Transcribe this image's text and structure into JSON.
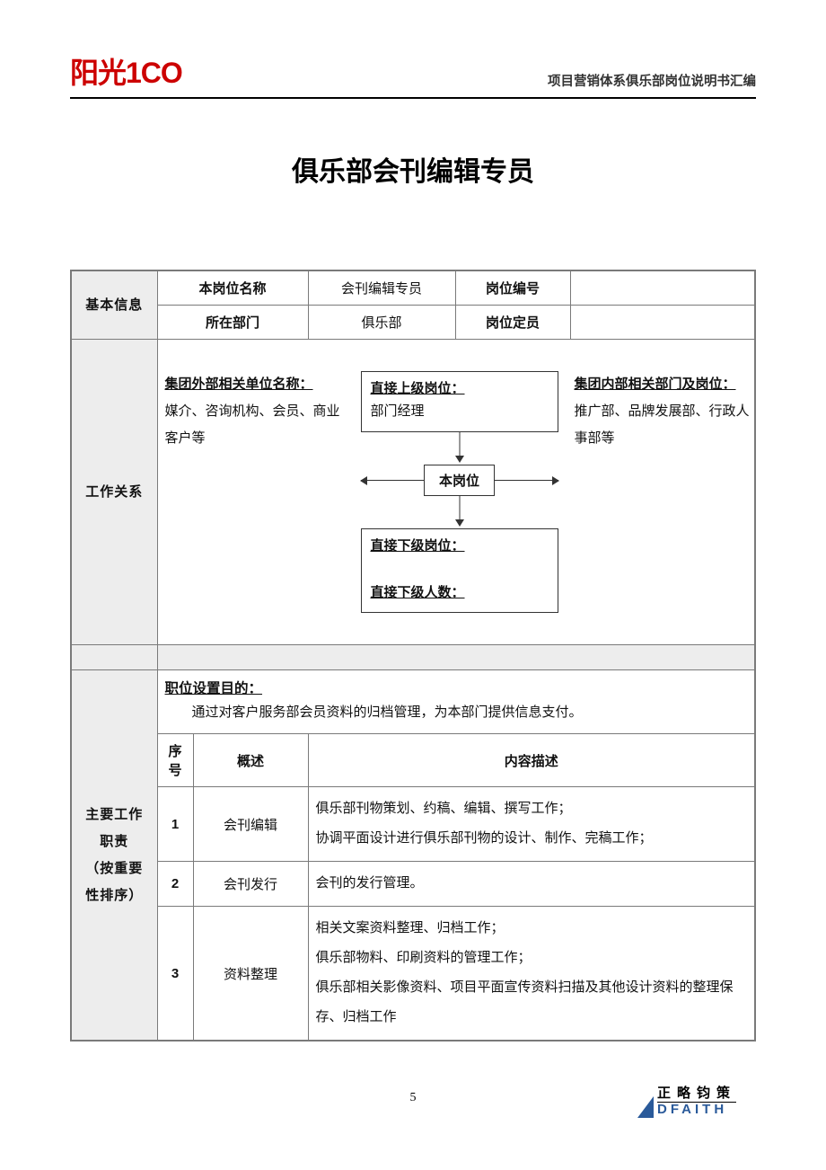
{
  "header": {
    "logo_text": "阳光1CO",
    "subtitle": "项目营销体系俱乐部岗位说明书汇编"
  },
  "doc_title": "俱乐部会刊编辑专员",
  "basic_info": {
    "row_label": "基本信息",
    "pos_name_label": "本岗位名称",
    "pos_name_value": "会刊编辑专员",
    "pos_code_label": "岗位编号",
    "pos_code_value": "",
    "dept_label": "所在部门",
    "dept_value": "俱乐部",
    "headcount_label": "岗位定员",
    "headcount_value": ""
  },
  "work_rel": {
    "row_label": "工作关系",
    "external_title": "集团外部相关单位名称：",
    "external_body": "媒介、咨询机构、会员、商业客户等",
    "superior_title": "直接上级岗位：",
    "superior_body": "部门经理",
    "this_pos": "本岗位",
    "sub_title": "直接下级岗位：",
    "sub_count_title": "直接下级人数：",
    "internal_title": "集团内部相关部门及岗位：",
    "internal_body": "推广部、品牌发展部、行政人事部等"
  },
  "purpose": {
    "title": "职位设置目的：",
    "body": "通过对客户服务部会员资料的归档管理，为本部门提供信息支付。"
  },
  "duties": {
    "row_label_l1": "主要工作",
    "row_label_l2": "职责",
    "row_label_l3": "（按重要",
    "row_label_l4": "性排序）",
    "col_seq": "序号",
    "col_summary": "概述",
    "col_desc": "内容描述",
    "rows": [
      {
        "seq": "1",
        "summary": "会刊编辑",
        "desc": "俱乐部刊物策划、约稿、编辑、撰写工作；\n协调平面设计进行俱乐部刊物的设计、制作、完稿工作；"
      },
      {
        "seq": "2",
        "summary": "会刊发行",
        "desc": "会刊的发行管理。"
      },
      {
        "seq": "3",
        "summary": "资料整理",
        "desc": "相关文案资料整理、归档工作；\n俱乐部物料、印刷资料的管理工作；\n俱乐部相关影像资料、项目平面宣传资料扫描及其他设计资料的整理保存、归档工作"
      }
    ]
  },
  "footer": {
    "page_number": "5",
    "logo_cn": "正略钧策",
    "logo_en": "DFAITH"
  },
  "colors": {
    "shade_bg": "#ededed",
    "border": "#7a7a7a",
    "logo_red": "#cc0000",
    "footer_blue": "#2a5a9a"
  }
}
